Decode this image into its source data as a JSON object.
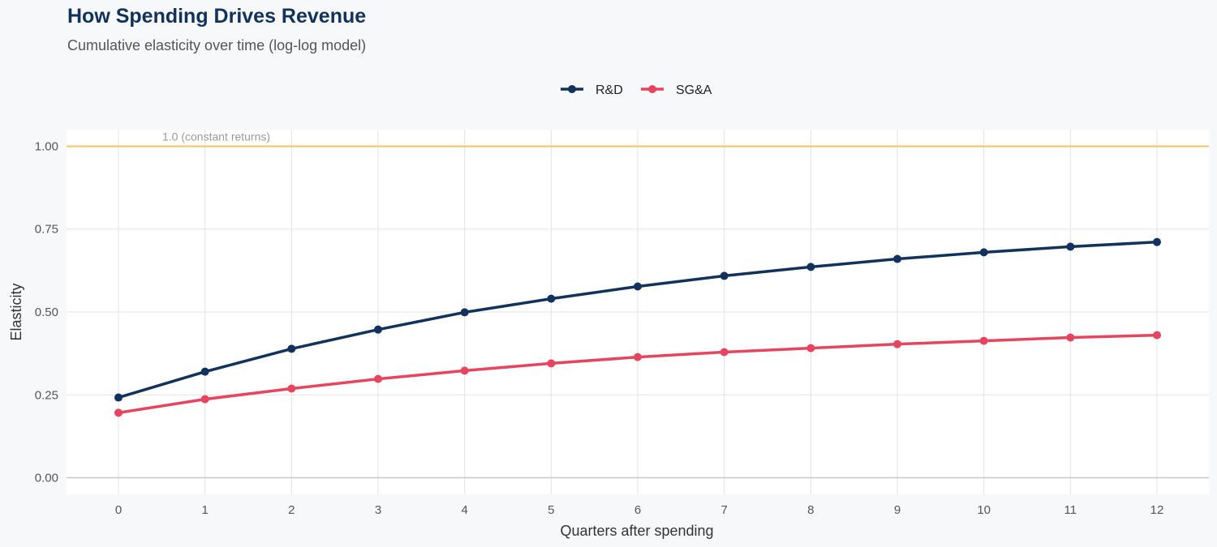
{
  "chart_data": {
    "type": "line",
    "title": "How Spending Drives Revenue",
    "subtitle": "Cumulative elasticity over time (log-log model)",
    "xlabel": "Quarters after spending",
    "ylabel": "Elasticity",
    "x": [
      0,
      1,
      2,
      3,
      4,
      5,
      6,
      7,
      8,
      9,
      10,
      11,
      12
    ],
    "xticks": [
      "0",
      "1",
      "2",
      "3",
      "4",
      "5",
      "6",
      "7",
      "8",
      "9",
      "10",
      "11",
      "12"
    ],
    "yticks": [
      "0.00",
      "0.25",
      "0.50",
      "0.75",
      "1.00"
    ],
    "ylim": [
      -0.05,
      1.05
    ],
    "xlim": [
      -0.6,
      12.6
    ],
    "grid": true,
    "legend_position": "top",
    "reference_line": {
      "y": 1.0,
      "label": "1.0 (constant returns)",
      "color": "#f2c55c"
    },
    "series": [
      {
        "name": "R&D",
        "color": "#12325e",
        "values": [
          0.242,
          0.32,
          0.389,
          0.447,
          0.499,
          0.54,
          0.577,
          0.609,
          0.636,
          0.66,
          0.68,
          0.697,
          0.711
        ]
      },
      {
        "name": "SG&A",
        "color": "#e8445e",
        "values": [
          0.196,
          0.237,
          0.269,
          0.298,
          0.323,
          0.345,
          0.364,
          0.379,
          0.391,
          0.403,
          0.413,
          0.423,
          0.43
        ]
      }
    ]
  }
}
